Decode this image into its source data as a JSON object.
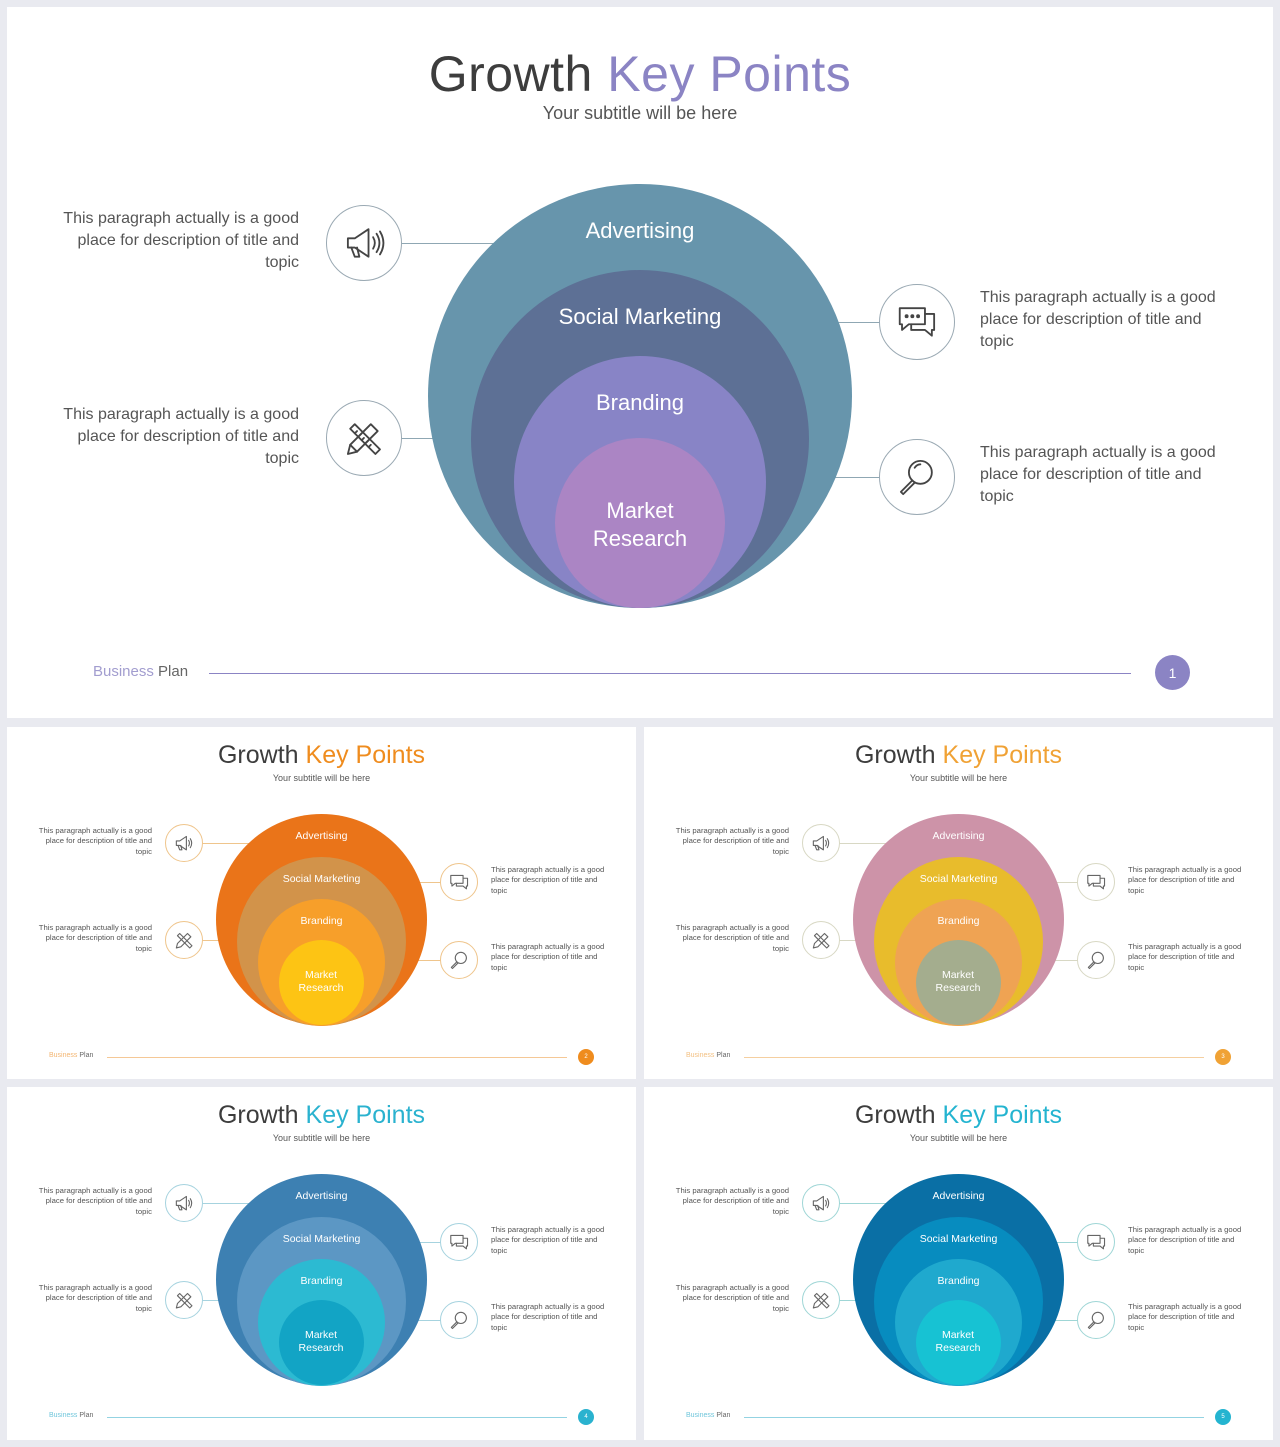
{
  "common": {
    "title_a": "Growth",
    "title_b": "Key Points",
    "subtitle": "Your subtitle will be here",
    "desc": "This paragraph actually is a good place for description of title and topic",
    "brand_a": "Business",
    "brand_b": "Plan",
    "rings": [
      "Advertising",
      "Social Marketing",
      "Branding",
      "Market Research"
    ],
    "icons": [
      "megaphone-icon",
      "chat-bubbles-icon",
      "pencil-ruler-icon",
      "magnifier-icon"
    ]
  },
  "slides": [
    {
      "page": "1",
      "accent": "#8b84c4",
      "ring_colors": [
        "#6795ac",
        "#5d7095",
        "#8884c6",
        "#ab85c4"
      ]
    },
    {
      "page": "2",
      "accent": "#ef8c1e",
      "ring_colors": [
        "#ea7419",
        "#d2934a",
        "#f79f2a",
        "#fdc414"
      ]
    },
    {
      "page": "3",
      "accent": "#f0a235",
      "ring_colors": [
        "#cd93a8",
        "#e8bc2c",
        "#efa353",
        "#a4ad8e"
      ]
    },
    {
      "page": "4",
      "accent": "#2ab2cf",
      "ring_colors": [
        "#3d80b2",
        "#5c97c4",
        "#2cbad2",
        "#12a4c5"
      ]
    },
    {
      "page": "5",
      "accent": "#24b4d0",
      "ring_colors": [
        "#0a6fa5",
        "#078cbf",
        "#1fa9ce",
        "#17c2d3"
      ]
    }
  ]
}
